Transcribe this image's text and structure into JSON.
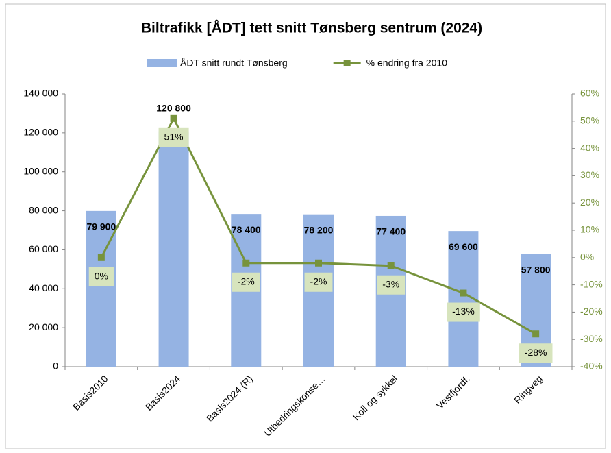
{
  "chart_data": {
    "type": "bar",
    "title": "Biltrafikk [ÅDT] tett snitt Tønsberg sentrum (2024)",
    "categories": [
      "Basis2010",
      "Basis2024",
      "Basis2024 (R)",
      "Utbedringskonse…",
      "Koll og sykkel",
      "Vestfjordf.",
      "Ringveg"
    ],
    "series": [
      {
        "name": "ÅDT snitt rundt Tønsberg",
        "type": "bar",
        "color": "#95b3e3",
        "values": [
          79900,
          120800,
          78400,
          78200,
          77400,
          69600,
          57800
        ],
        "value_labels": [
          "79 900",
          "120 800",
          "78 400",
          "78 200",
          "77 400",
          "69 600",
          "57 800"
        ]
      },
      {
        "name": "% endring fra 2010",
        "type": "line",
        "axis": "y2",
        "color": "#77933c",
        "values": [
          0,
          51,
          -2,
          -2,
          -3,
          -13,
          -28
        ],
        "value_labels": [
          "0%",
          "51%",
          "-2%",
          "-2%",
          "-3%",
          "-13%",
          "-28%"
        ]
      }
    ],
    "ylim": [
      0,
      140000
    ],
    "yticks": [
      0,
      {
        "value": 20000,
        "label": "20 000"
      },
      {
        "value": 40000,
        "label": "40 000"
      },
      {
        "value": 60000,
        "label": "60 000"
      },
      {
        "value": 80000,
        "label": "80 000"
      },
      {
        "value": 100000,
        "label": "100 000"
      },
      {
        "value": 120000,
        "label": "120 000"
      },
      {
        "value": 140000,
        "label": "140 000"
      }
    ],
    "y2lim": [
      -40,
      60
    ],
    "y2ticks": [
      {
        "value": -40,
        "label": "-40%"
      },
      {
        "value": -30,
        "label": "-30%"
      },
      {
        "value": -20,
        "label": "-20%"
      },
      {
        "value": -10,
        "label": "-10%"
      },
      {
        "value": 0,
        "label": "0%"
      },
      {
        "value": 10,
        "label": "10%"
      },
      {
        "value": 20,
        "label": "20%"
      },
      {
        "value": 30,
        "label": "30%"
      },
      {
        "value": 40,
        "label": "40%"
      },
      {
        "value": 50,
        "label": "50%"
      },
      {
        "value": 60,
        "label": "60%"
      }
    ],
    "grid": false,
    "legend": "top"
  }
}
